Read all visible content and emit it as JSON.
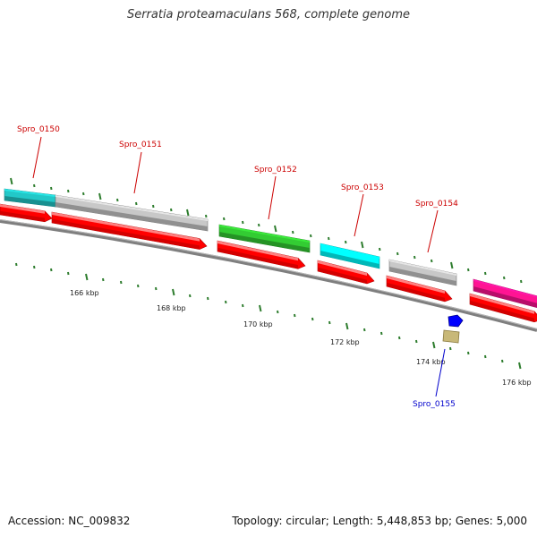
{
  "title": "Serratia proteamaculans 568, complete genome",
  "footer": {
    "accession": "Accession: NC_009832",
    "topology": "Topology: circular; Length: 5,448,853 bp; Genes: 5,000"
  },
  "colors": {
    "backbone": "#7f7f7f",
    "cds": "#ff0000",
    "tick": "#2e7d2e",
    "label_red": "#cc0000",
    "label_blue": "#0000cc"
  },
  "scale_labels": [
    "166 kbp",
    "168 kbp",
    "170 kbp",
    "172 kbp",
    "174 kbp",
    "176 kbp"
  ],
  "genes": [
    {
      "name": "Spro_0150",
      "color": "#22c8c8",
      "label_color": "#cc0000"
    },
    {
      "name": "Spro_0151",
      "color": "#c8c8c8",
      "label_color": "#cc0000"
    },
    {
      "name": "Spro_0152",
      "color": "#33cc33",
      "label_color": "#cc0000"
    },
    {
      "name": "Spro_0153",
      "color": "#00ffff",
      "label_color": "#cc0000"
    },
    {
      "name": "Spro_0154",
      "color": "#c8c8c8",
      "label_color": "#cc0000"
    },
    {
      "name": "",
      "color": "#ff1493",
      "label_color": "#cc0000"
    },
    {
      "name": "Spro_0155",
      "color": "#0000ff",
      "label_color": "#0000cc"
    }
  ]
}
